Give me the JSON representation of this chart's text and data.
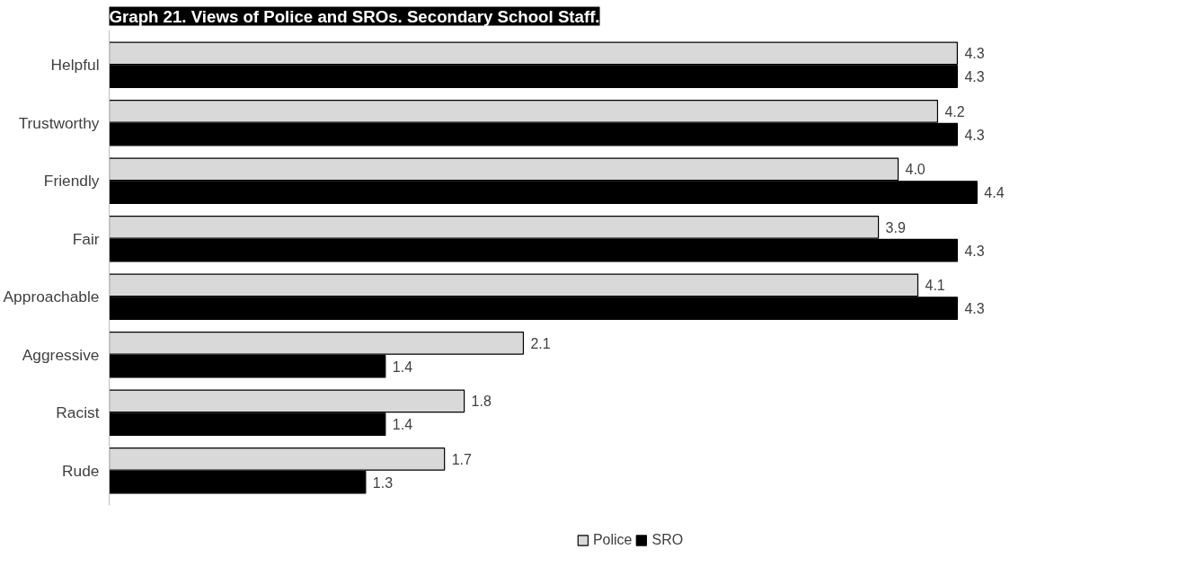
{
  "chart_data": {
    "type": "bar",
    "orientation": "horizontal",
    "title": "Graph 21. Views of Police and SROs. Secondary School Staff.",
    "categories": [
      "Helpful",
      "Trustworthy",
      "Friendly",
      "Fair",
      "Approachable",
      "Aggressive",
      "Racist",
      "Rude"
    ],
    "series": [
      {
        "name": "Police",
        "color": "#d9d9d9",
        "values": [
          4.3,
          4.2,
          4.0,
          3.9,
          4.1,
          2.1,
          1.8,
          1.7
        ],
        "value_labels": [
          "4.3",
          "4.2",
          "4.0",
          "3.9",
          "4.1",
          "2.1",
          "1.8",
          "1.7"
        ]
      },
      {
        "name": "SRO",
        "color": "#000000",
        "values": [
          4.3,
          4.3,
          4.4,
          4.3,
          4.3,
          1.4,
          1.4,
          1.3
        ],
        "value_labels": [
          "4.3",
          "4.3",
          "4.4",
          "4.3",
          "4.3",
          "1.4",
          "1.4",
          "1.3"
        ]
      }
    ],
    "legend": "bottom",
    "grid": false
  }
}
